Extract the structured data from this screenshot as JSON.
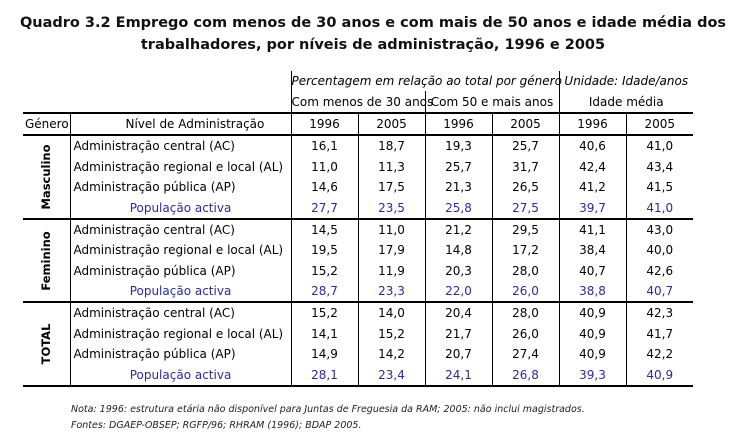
{
  "title": {
    "line1": "Quadro 3.2 Emprego com menos de 30 anos e com mais de 50 anos e idade média dos",
    "line2": "trabalhadores, por níveis de administração, 1996 e 2005"
  },
  "header": {
    "percent_caption": "Percentagem em relação ao total por género",
    "unit_caption": "Unidade: Idade/anos",
    "group_under30": "Com menos de 30 anos",
    "group_over50": "Com 50 e mais anos",
    "group_age": "Idade média",
    "col_genero": "Género",
    "col_nivel": "Nível de Administração",
    "years": [
      "1996",
      "2005",
      "1996",
      "2005",
      "1996",
      "2005"
    ]
  },
  "groups": [
    {
      "label": "Masculino",
      "rows": [
        {
          "name": "Administração central (AC)",
          "values": [
            "16,1",
            "18,7",
            "19,3",
            "25,7",
            "40,6",
            "41,0"
          ]
        },
        {
          "name": "Administração regional e local (AL)",
          "values": [
            "11,0",
            "11,3",
            "25,7",
            "31,7",
            "42,4",
            "43,4"
          ]
        },
        {
          "name": "Administração pública (AP)",
          "values": [
            "14,6",
            "17,5",
            "21,3",
            "26,5",
            "41,2",
            "41,5"
          ]
        },
        {
          "name": "População activa",
          "values": [
            "27,7",
            "23,5",
            "25,8",
            "27,5",
            "39,7",
            "41,0"
          ]
        }
      ]
    },
    {
      "label": "Feminino",
      "rows": [
        {
          "name": "Administração central (AC)",
          "values": [
            "14,5",
            "11,0",
            "21,2",
            "29,5",
            "41,1",
            "43,0"
          ]
        },
        {
          "name": "Administração regional e local (AL)",
          "values": [
            "19,5",
            "17,9",
            "14,8",
            "17,2",
            "38,4",
            "40,0"
          ]
        },
        {
          "name": "Administração pública (AP)",
          "values": [
            "15,2",
            "11,9",
            "20,3",
            "28,0",
            "40,7",
            "42,6"
          ]
        },
        {
          "name": "População activa",
          "values": [
            "28,7",
            "23,3",
            "22,0",
            "26,0",
            "38,8",
            "40,7"
          ]
        }
      ]
    },
    {
      "label": "TOTAL",
      "rows": [
        {
          "name": "Administração central (AC)",
          "values": [
            "15,2",
            "14,0",
            "20,4",
            "28,0",
            "40,9",
            "42,3"
          ]
        },
        {
          "name": "Administração regional e local (AL)",
          "values": [
            "14,1",
            "15,2",
            "21,7",
            "26,0",
            "40,9",
            "41,7"
          ]
        },
        {
          "name": "Administração pública (AP)",
          "values": [
            "14,9",
            "14,2",
            "20,7",
            "27,4",
            "40,9",
            "42,2"
          ]
        },
        {
          "name": "População activa",
          "values": [
            "28,1",
            "23,4",
            "24,1",
            "26,8",
            "39,3",
            "40,9"
          ]
        }
      ]
    }
  ],
  "notes": {
    "note": "Nota: 1996: estrutura etária não disponível para Juntas de Freguesia da RAM; 2005: não inclui magistrados.",
    "sources": "Fontes: DGAEP-OBSEP; RGFP/96; RHRAM (1996); BDAP 2005."
  },
  "colors": {
    "population_row_text": "#2b2b9a",
    "text": "#000000"
  }
}
